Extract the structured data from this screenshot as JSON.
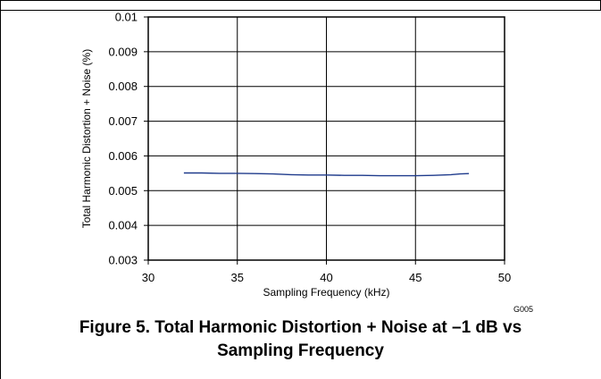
{
  "chart_data": {
    "type": "line",
    "xlabel": "Sampling Frequency (kHz)",
    "ylabel": "Total Harmonic Distortion + Noise (%)",
    "xlim": [
      30,
      50
    ],
    "ylim": [
      0.003,
      0.01
    ],
    "x_ticks": [
      "30",
      "35",
      "40",
      "45",
      "50"
    ],
    "y_ticks": [
      "0.003",
      "0.004",
      "0.005",
      "0.006",
      "0.007",
      "0.008",
      "0.009",
      "0.01"
    ],
    "grid": true,
    "line_color": "#1f3b8c",
    "series": [
      {
        "x": [
          32,
          33,
          34,
          35,
          36,
          37,
          38,
          39,
          40,
          41,
          42,
          43,
          44,
          45,
          46,
          47,
          47.5,
          48
        ],
        "values": [
          0.00551,
          0.00551,
          0.0055,
          0.0055,
          0.00549,
          0.00548,
          0.00546,
          0.00545,
          0.00545,
          0.00544,
          0.00544,
          0.00543,
          0.00543,
          0.00543,
          0.00544,
          0.00546,
          0.00548,
          0.00549
        ]
      }
    ],
    "figure_id": "G005"
  },
  "caption": {
    "line1": "Figure 5. Total Harmonic Distortion + Noise at –1 dB vs",
    "line2": "Sampling Frequency"
  }
}
